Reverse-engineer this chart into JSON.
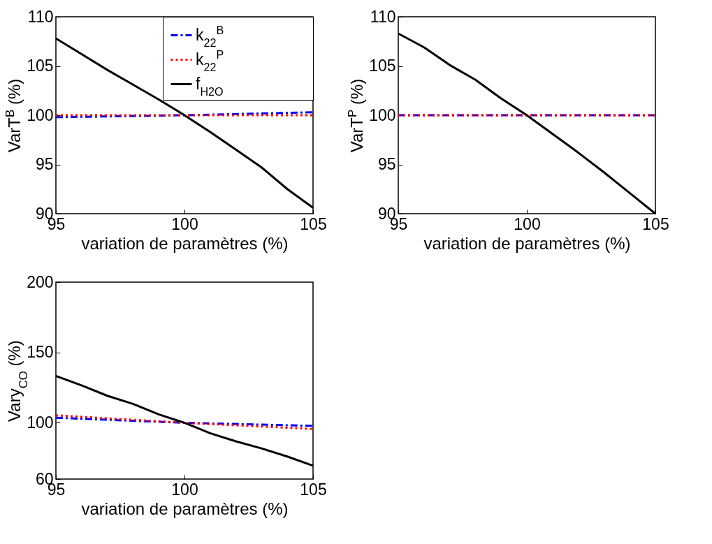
{
  "chart_data": [
    {
      "type": "line",
      "xlabel": "variation de paramètres (%)",
      "ylabel": "VarT$^{B}$ (%)",
      "x": [
        95,
        96,
        97,
        98,
        99,
        100,
        101,
        102,
        103,
        104,
        105
      ],
      "xlim": [
        95,
        105
      ],
      "xticks": [
        95,
        100,
        105
      ],
      "ylim": [
        90,
        110
      ],
      "yticks": [
        90,
        95,
        100,
        105,
        110
      ],
      "legend": "top right",
      "grid": false,
      "series": [
        {
          "name": "k$_{22}$$^{B}$",
          "color": "#0000ff",
          "line_style": "dashdot",
          "x": [
            95,
            100,
            105
          ],
          "values": [
            99.8,
            100,
            100.3
          ]
        },
        {
          "name": "k$_{22}$$^{P}$",
          "color": "#ff0000",
          "line_style": "dotted",
          "x": [
            95,
            100,
            105
          ],
          "values": [
            100,
            100,
            100
          ]
        },
        {
          "name": "f$_{H2O}$",
          "color": "#000000",
          "line_style": "solid",
          "values": [
            107.8,
            106.2,
            104.6,
            103.1,
            101.6,
            100,
            98.3,
            96.5,
            94.7,
            92.5,
            90.6
          ]
        }
      ]
    },
    {
      "type": "line",
      "xlabel": "variation de paramètres (%)",
      "ylabel": "VarT$^{P}$ (%)",
      "x": [
        95,
        96,
        97,
        98,
        99,
        100,
        101,
        102,
        103,
        104,
        105
      ],
      "xlim": [
        95,
        105
      ],
      "xticks": [
        95,
        100,
        105
      ],
      "ylim": [
        90,
        110
      ],
      "yticks": [
        90,
        95,
        100,
        105,
        110
      ],
      "grid": false,
      "series": [
        {
          "color": "#0000ff",
          "line_style": "dashdot",
          "x": [
            95,
            100,
            105
          ],
          "values": [
            100,
            100,
            100
          ]
        },
        {
          "color": "#ff0000",
          "line_style": "dotted",
          "x": [
            95,
            100,
            105
          ],
          "values": [
            100,
            100,
            100
          ]
        },
        {
          "color": "#000000",
          "line_style": "solid",
          "values": [
            108.3,
            106.9,
            105.1,
            103.6,
            101.7,
            100,
            98.1,
            96.2,
            94.2,
            92.1,
            90
          ]
        }
      ]
    },
    {
      "type": "line",
      "xlabel": "variation de paramètres (%)",
      "ylabel": "Vary$_{CO}$ (%)",
      "x": [
        95,
        96,
        97,
        98,
        99,
        100,
        101,
        102,
        103,
        104,
        105
      ],
      "xlim": [
        95,
        105
      ],
      "xticks": [
        95,
        100,
        105
      ],
      "ylim": [
        60,
        200
      ],
      "yticks": [
        60,
        100,
        150,
        200
      ],
      "grid": false,
      "series": [
        {
          "color": "#0000ff",
          "line_style": "dashdot",
          "x": [
            95,
            100,
            105
          ],
          "values": [
            103.6,
            100,
            97.8
          ]
        },
        {
          "color": "#ff0000",
          "line_style": "dotted",
          "x": [
            95,
            100,
            105
          ],
          "values": [
            105.3,
            100,
            95.6
          ]
        },
        {
          "color": "#000000",
          "line_style": "solid",
          "values": [
            133.3,
            126.6,
            119.2,
            113.4,
            106,
            100,
            92.6,
            86.8,
            81.8,
            76,
            69.5
          ]
        }
      ]
    }
  ]
}
